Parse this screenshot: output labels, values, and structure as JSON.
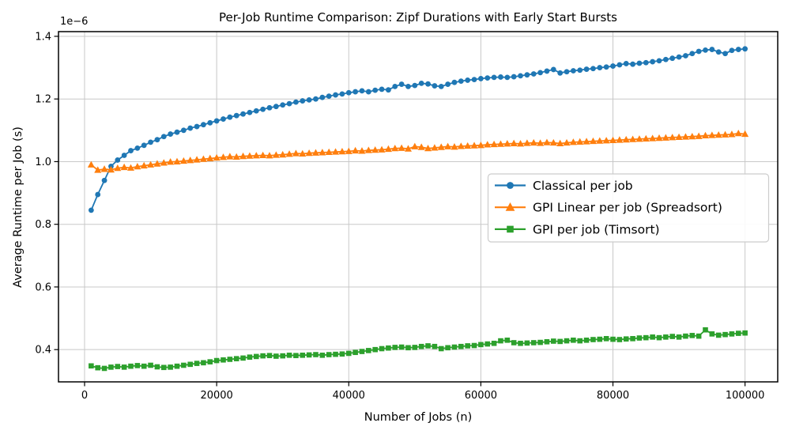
{
  "chart_data": {
    "type": "line",
    "title": "Per-Job Runtime Comparison: Zipf Durations with Early Start Bursts",
    "xlabel": "Number of Jobs (n)",
    "ylabel": "Average Runtime per Job (s)",
    "y_offset_label": "1e−6",
    "y_scale": "values are seconds × 1e-6",
    "grid": true,
    "legend_position": "center right",
    "background_color": "#ffffff",
    "grid_color": "#c8c8c8",
    "axis_color": "#000000",
    "legend_border_color": "#cccccc",
    "xlim": [
      -3950,
      104950
    ],
    "ylim_e6": [
      0.297,
      1.415
    ],
    "xticks": [
      0,
      20000,
      40000,
      60000,
      80000,
      100000
    ],
    "xtick_labels": [
      "0",
      "20000",
      "40000",
      "60000",
      "80000",
      "100000"
    ],
    "yticks_e6": [
      0.4,
      0.6,
      0.8,
      1.0,
      1.2,
      1.4
    ],
    "ytick_labels": [
      "0.4",
      "0.6",
      "0.8",
      "1.0",
      "1.2",
      "1.4"
    ],
    "x": [
      1000,
      2000,
      3000,
      4000,
      5000,
      6000,
      7000,
      8000,
      9000,
      10000,
      11000,
      12000,
      13000,
      14000,
      15000,
      16000,
      17000,
      18000,
      19000,
      20000,
      21000,
      22000,
      23000,
      24000,
      25000,
      26000,
      27000,
      28000,
      29000,
      30000,
      31000,
      32000,
      33000,
      34000,
      35000,
      36000,
      37000,
      38000,
      39000,
      40000,
      41000,
      42000,
      43000,
      44000,
      45000,
      46000,
      47000,
      48000,
      49000,
      50000,
      51000,
      52000,
      53000,
      54000,
      55000,
      56000,
      57000,
      58000,
      59000,
      60000,
      61000,
      62000,
      63000,
      64000,
      65000,
      66000,
      67000,
      68000,
      69000,
      70000,
      71000,
      72000,
      73000,
      74000,
      75000,
      76000,
      77000,
      78000,
      79000,
      80000,
      81000,
      82000,
      83000,
      84000,
      85000,
      86000,
      87000,
      88000,
      89000,
      90000,
      91000,
      92000,
      93000,
      94000,
      95000,
      96000,
      97000,
      98000,
      99000,
      100000
    ],
    "series": [
      {
        "id": "classical",
        "name": "Classical per job",
        "color": "#1f77b4",
        "marker": "circle",
        "values_e6": [
          0.845,
          0.895,
          0.94,
          0.985,
          1.005,
          1.02,
          1.035,
          1.043,
          1.052,
          1.062,
          1.07,
          1.08,
          1.088,
          1.094,
          1.1,
          1.107,
          1.112,
          1.118,
          1.124,
          1.13,
          1.136,
          1.142,
          1.147,
          1.152,
          1.157,
          1.162,
          1.167,
          1.172,
          1.176,
          1.181,
          1.185,
          1.19,
          1.194,
          1.197,
          1.2,
          1.205,
          1.209,
          1.213,
          1.216,
          1.22,
          1.223,
          1.226,
          1.223,
          1.228,
          1.231,
          1.229,
          1.24,
          1.247,
          1.24,
          1.243,
          1.25,
          1.248,
          1.242,
          1.24,
          1.247,
          1.253,
          1.257,
          1.26,
          1.262,
          1.265,
          1.267,
          1.269,
          1.27,
          1.269,
          1.271,
          1.274,
          1.277,
          1.28,
          1.284,
          1.289,
          1.294,
          1.283,
          1.287,
          1.29,
          1.292,
          1.295,
          1.297,
          1.3,
          1.302,
          1.305,
          1.309,
          1.313,
          1.311,
          1.314,
          1.316,
          1.319,
          1.322,
          1.326,
          1.33,
          1.334,
          1.338,
          1.345,
          1.352,
          1.356,
          1.358,
          1.35,
          1.345,
          1.355,
          1.358,
          1.36
        ]
      },
      {
        "id": "gpi-linear",
        "name": "GPI Linear per job (Spreadsort)",
        "color": "#ff7f0e",
        "marker": "triangle",
        "values_e6": [
          0.99,
          0.973,
          0.976,
          0.974,
          0.979,
          0.982,
          0.98,
          0.984,
          0.987,
          0.99,
          0.993,
          0.996,
          0.999,
          1.0,
          1.002,
          1.004,
          1.006,
          1.008,
          1.01,
          1.012,
          1.014,
          1.016,
          1.015,
          1.017,
          1.018,
          1.019,
          1.02,
          1.019,
          1.021,
          1.022,
          1.024,
          1.026,
          1.025,
          1.027,
          1.028,
          1.029,
          1.03,
          1.031,
          1.032,
          1.033,
          1.035,
          1.034,
          1.036,
          1.037,
          1.038,
          1.04,
          1.042,
          1.043,
          1.041,
          1.048,
          1.046,
          1.042,
          1.044,
          1.046,
          1.048,
          1.047,
          1.049,
          1.05,
          1.051,
          1.052,
          1.054,
          1.055,
          1.056,
          1.057,
          1.058,
          1.057,
          1.059,
          1.06,
          1.059,
          1.061,
          1.06,
          1.058,
          1.06,
          1.062,
          1.063,
          1.064,
          1.065,
          1.066,
          1.067,
          1.068,
          1.069,
          1.07,
          1.071,
          1.072,
          1.073,
          1.074,
          1.075,
          1.076,
          1.077,
          1.078,
          1.079,
          1.08,
          1.081,
          1.083,
          1.084,
          1.085,
          1.086,
          1.087,
          1.09,
          1.088
        ]
      },
      {
        "id": "gpi-timsort",
        "name": "GPI per job (Timsort)",
        "color": "#2ca02c",
        "marker": "square",
        "values_e6": [
          0.348,
          0.342,
          0.34,
          0.344,
          0.346,
          0.344,
          0.347,
          0.349,
          0.347,
          0.35,
          0.345,
          0.343,
          0.344,
          0.347,
          0.35,
          0.353,
          0.356,
          0.358,
          0.361,
          0.365,
          0.367,
          0.369,
          0.371,
          0.373,
          0.376,
          0.378,
          0.38,
          0.381,
          0.379,
          0.38,
          0.382,
          0.381,
          0.382,
          0.383,
          0.384,
          0.382,
          0.384,
          0.385,
          0.386,
          0.388,
          0.391,
          0.394,
          0.397,
          0.4,
          0.403,
          0.405,
          0.407,
          0.408,
          0.406,
          0.407,
          0.41,
          0.412,
          0.41,
          0.403,
          0.406,
          0.408,
          0.41,
          0.412,
          0.413,
          0.416,
          0.418,
          0.42,
          0.428,
          0.43,
          0.422,
          0.42,
          0.421,
          0.422,
          0.423,
          0.425,
          0.427,
          0.426,
          0.428,
          0.43,
          0.428,
          0.43,
          0.432,
          0.433,
          0.435,
          0.433,
          0.432,
          0.434,
          0.435,
          0.437,
          0.438,
          0.44,
          0.438,
          0.44,
          0.442,
          0.44,
          0.443,
          0.445,
          0.443,
          0.463,
          0.45,
          0.446,
          0.448,
          0.45,
          0.452,
          0.453
        ]
      }
    ]
  }
}
